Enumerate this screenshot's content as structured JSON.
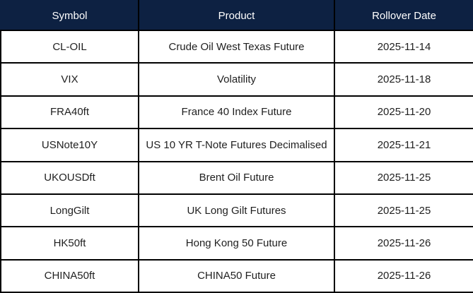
{
  "colors": {
    "header_background": "#0d2142",
    "header_text": "#ffffff",
    "body_background": "#ffffff",
    "body_text": "#1f1f1f",
    "border": "#000000"
  },
  "table": {
    "columns": [
      {
        "label": "Symbol"
      },
      {
        "label": "Product"
      },
      {
        "label": "Rollover Date"
      }
    ],
    "rows": [
      {
        "symbol": "CL-OIL",
        "product": "Crude Oil West Texas Future",
        "rollover_date": "2025-11-14"
      },
      {
        "symbol": "VIX",
        "product": "Volatility",
        "rollover_date": "2025-11-18"
      },
      {
        "symbol": "FRA40ft",
        "product": "France 40 Index Future",
        "rollover_date": "2025-11-20"
      },
      {
        "symbol": "USNote10Y",
        "product": "US 10 YR T-Note Futures Decimalised",
        "rollover_date": "2025-11-21"
      },
      {
        "symbol": "UKOUSDft",
        "product": "Brent Oil Future",
        "rollover_date": "2025-11-25"
      },
      {
        "symbol": "LongGilt",
        "product": "UK Long Gilt Futures",
        "rollover_date": "2025-11-25"
      },
      {
        "symbol": "HK50ft",
        "product": "Hong Kong 50 Future",
        "rollover_date": "2025-11-26"
      },
      {
        "symbol": "CHINA50ft",
        "product": "CHINA50 Future",
        "rollover_date": "2025-11-26"
      }
    ]
  }
}
